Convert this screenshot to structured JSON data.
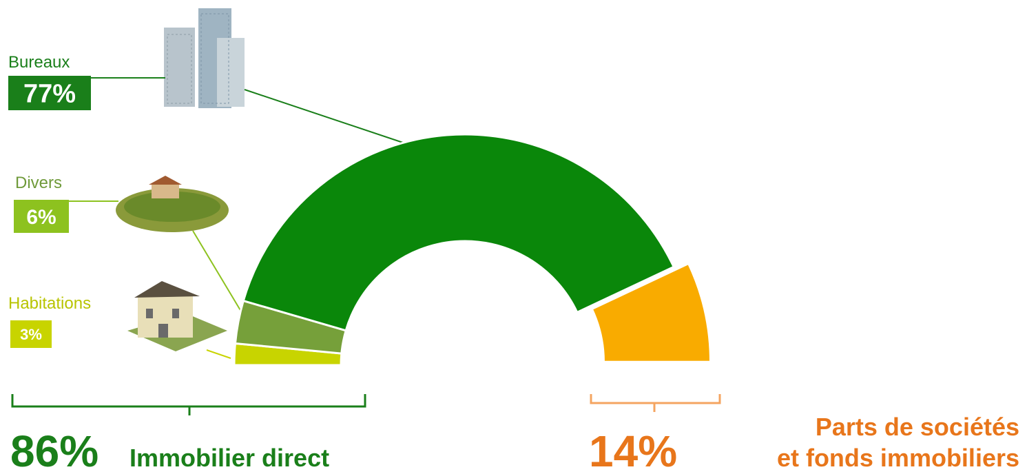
{
  "chart_data": {
    "type": "semi-donut",
    "categories": [
      "Habitations",
      "Divers",
      "Bureaux",
      null
    ],
    "values": [
      3,
      6,
      77,
      14
    ],
    "value_labels": [
      "3%",
      "6%",
      "77%",
      "14%"
    ],
    "colors": [
      "#c8d400",
      "#76a03a",
      "#0a870a",
      "#f9ab00"
    ],
    "groups": [
      {
        "value": 86,
        "label": "86%",
        "name": "Immobilier direct"
      },
      {
        "name": [
          "Parts de sociétés",
          "et fonds immobiliers"
        ]
      }
    ]
  }
}
